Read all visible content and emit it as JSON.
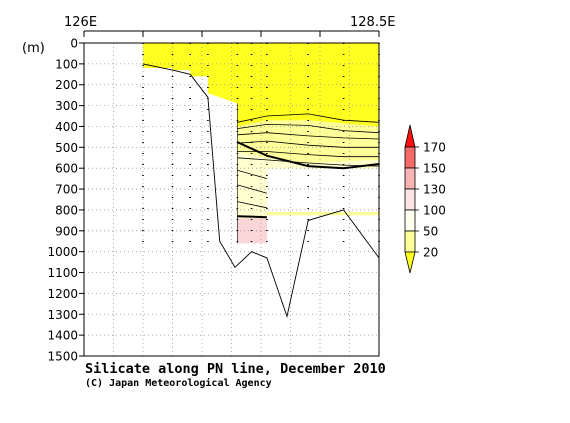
{
  "chart_data": {
    "type": "heatmap",
    "title": "Silicate along PN line, December 2010",
    "credit": "(C) Japan Meteorological Agency",
    "y_unit_label": "(m)",
    "x_top_labels": [
      "126E",
      "128.5E"
    ],
    "xlim": [
      126.0,
      128.5
    ],
    "ylim": [
      0,
      1500
    ],
    "y_reversed": true,
    "y_ticks": [
      0,
      100,
      200,
      300,
      400,
      500,
      600,
      700,
      800,
      900,
      1000,
      1100,
      1200,
      1300,
      1400,
      1500
    ],
    "grid": true,
    "stations_lon": [
      126.5,
      126.75,
      126.9,
      127.05,
      127.3,
      127.42,
      127.55,
      127.9,
      128.2,
      128.5
    ],
    "station_depth_m": [
      [
        126.5,
        100
      ],
      [
        126.75,
        130
      ],
      [
        126.9,
        150
      ],
      [
        127.05,
        260
      ],
      [
        127.15,
        950
      ],
      [
        127.28,
        1075
      ],
      [
        127.42,
        1000
      ],
      [
        127.55,
        1030
      ],
      [
        127.72,
        1310
      ],
      [
        127.9,
        850
      ],
      [
        128.2,
        800
      ],
      [
        128.5,
        1030
      ]
    ],
    "colorbar": {
      "labels": [
        "170",
        "150",
        "130",
        "100",
        "50",
        "20"
      ],
      "colors": [
        "#ff1010",
        "#f86a6a",
        "#f8b3b3",
        "#fde4e4",
        "#fffff0",
        "#ffff99",
        "#ffff20"
      ]
    },
    "contours": [
      {
        "points": [
          [
            127.3,
            380
          ],
          [
            127.55,
            350
          ],
          [
            127.9,
            340
          ],
          [
            128.2,
            370
          ],
          [
            128.5,
            380
          ]
        ]
      },
      {
        "points": [
          [
            127.3,
            410
          ],
          [
            127.55,
            390
          ],
          [
            127.9,
            395
          ],
          [
            128.2,
            420
          ],
          [
            128.5,
            430
          ]
        ]
      },
      {
        "points": [
          [
            127.3,
            440
          ],
          [
            127.55,
            430
          ],
          [
            127.9,
            445
          ],
          [
            128.2,
            455
          ],
          [
            128.5,
            460
          ]
        ]
      },
      {
        "points": [
          [
            127.3,
            480
          ],
          [
            127.55,
            470
          ],
          [
            127.9,
            490
          ],
          [
            128.2,
            500
          ],
          [
            128.5,
            500
          ]
        ]
      },
      {
        "points": [
          [
            127.3,
            520
          ],
          [
            127.55,
            520
          ],
          [
            127.9,
            535
          ],
          [
            128.2,
            545
          ],
          [
            128.5,
            545
          ]
        ]
      },
      {
        "points": [
          [
            127.3,
            550
          ],
          [
            127.55,
            560
          ],
          [
            127.9,
            575
          ],
          [
            128.2,
            585
          ],
          [
            128.5,
            590
          ]
        ]
      },
      {
        "points": [
          [
            127.3,
            610
          ],
          [
            127.55,
            650
          ]
        ]
      },
      {
        "points": [
          [
            127.3,
            680
          ],
          [
            127.55,
            720
          ]
        ]
      },
      {
        "points": [
          [
            127.3,
            760
          ],
          [
            127.55,
            790
          ]
        ]
      }
    ],
    "bold_contours": [
      {
        "points": [
          [
            127.3,
            475
          ],
          [
            127.55,
            540
          ],
          [
            127.9,
            590
          ],
          [
            128.2,
            600
          ],
          [
            128.5,
            580
          ]
        ]
      },
      {
        "points": [
          [
            127.3,
            830
          ],
          [
            127.55,
            835
          ]
        ]
      }
    ]
  }
}
